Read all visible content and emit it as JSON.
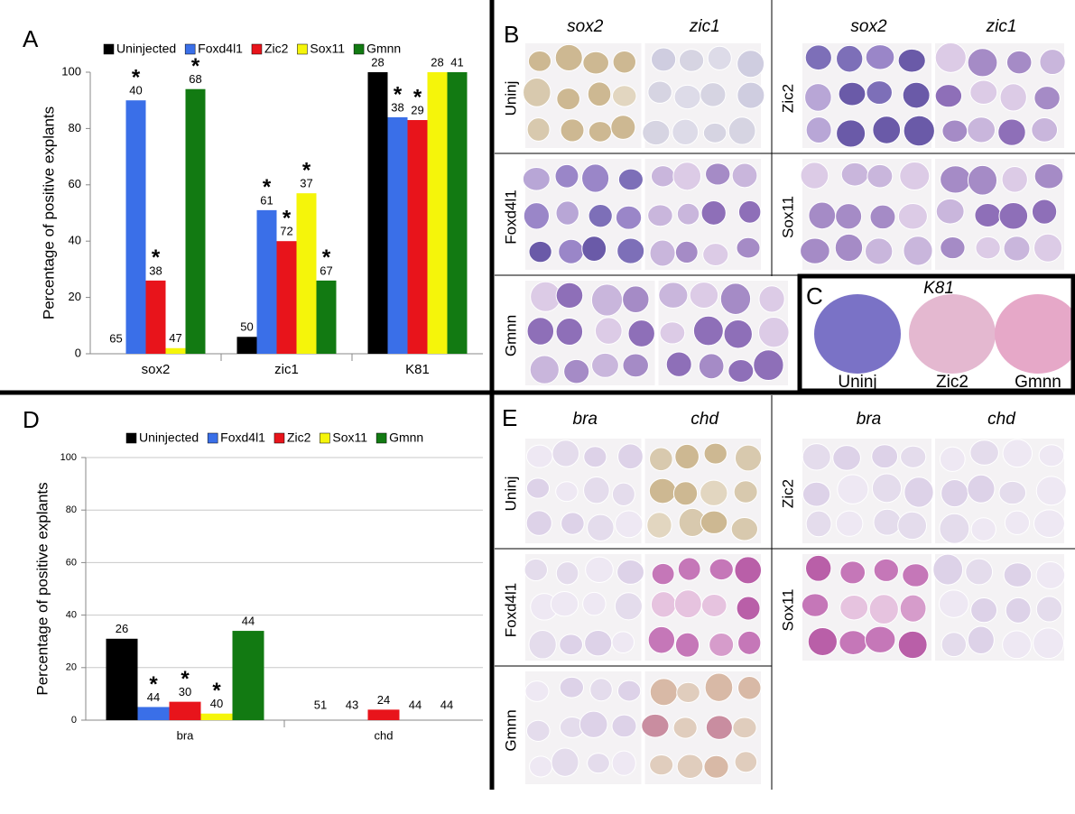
{
  "chart_data": [
    {
      "type": "bar",
      "panel": "A",
      "ylabel": "Percentage of positive explants",
      "categories": [
        "sox2",
        "zic1",
        "K81"
      ],
      "significance_marker": "*",
      "series": [
        {
          "name": "Uninjected",
          "color": "#000000",
          "values": [
            0,
            6,
            100
          ],
          "n_labels": [
            "65",
            "50",
            "28"
          ],
          "significant": [
            false,
            false,
            false
          ]
        },
        {
          "name": "Foxd4l1",
          "color": "#3a6fe8",
          "values": [
            90,
            51,
            84
          ],
          "n_labels": [
            "40",
            "61",
            "38"
          ],
          "significant": [
            true,
            true,
            true
          ]
        },
        {
          "name": "Zic2",
          "color": "#e8141b",
          "values": [
            26,
            40,
            83
          ],
          "n_labels": [
            "38",
            "72",
            "29"
          ],
          "significant": [
            true,
            true,
            true
          ]
        },
        {
          "name": "Sox11",
          "color": "#f5f50a",
          "values": [
            2,
            57,
            100
          ],
          "n_labels": [
            "47",
            "37",
            "28"
          ],
          "significant": [
            false,
            true,
            false
          ]
        },
        {
          "name": "Gmnn",
          "color": "#127a12",
          "values": [
            94,
            26,
            100
          ],
          "n_labels": [
            "68",
            "67",
            "41"
          ],
          "significant": [
            true,
            true,
            false
          ]
        }
      ],
      "ylim": [
        0,
        100
      ],
      "yticks": [
        0,
        20,
        40,
        60,
        80,
        100
      ],
      "grid": false
    },
    {
      "type": "bar",
      "panel": "D",
      "ylabel": "Percentage of positive explants",
      "categories": [
        "bra",
        "chd"
      ],
      "significance_marker": "*",
      "series": [
        {
          "name": "Uninjected",
          "color": "#000000",
          "values": [
            31,
            0
          ],
          "n_labels": [
            "26",
            "51"
          ],
          "significant": [
            false,
            false
          ]
        },
        {
          "name": "Foxd4l1",
          "color": "#3a6fe8",
          "values": [
            5,
            0
          ],
          "n_labels": [
            "44",
            "43"
          ],
          "significant": [
            true,
            false
          ]
        },
        {
          "name": "Zic2",
          "color": "#e8141b",
          "values": [
            7,
            4
          ],
          "n_labels": [
            "30",
            "24"
          ],
          "significant": [
            true,
            false
          ]
        },
        {
          "name": "Sox11",
          "color": "#f5f50a",
          "values": [
            2.5,
            0
          ],
          "n_labels": [
            "40",
            "44"
          ],
          "significant": [
            true,
            false
          ]
        },
        {
          "name": "Gmnn",
          "color": "#127a12",
          "values": [
            34,
            0
          ],
          "n_labels": [
            "44",
            "44"
          ],
          "significant": [
            false,
            false
          ]
        }
      ],
      "ylim": [
        0,
        100
      ],
      "yticks": [
        0,
        20,
        40,
        60,
        80,
        100
      ],
      "grid": true
    }
  ],
  "panels": [
    {
      "letter": "B",
      "blocks": [
        {
          "row_label": "Uninj",
          "columns": [
            "sox2",
            "zic1"
          ]
        },
        {
          "row_label": "Zic2",
          "columns": [
            "sox2",
            "zic1"
          ]
        },
        {
          "row_label": "Foxd4l1"
        },
        {
          "row_label": "Sox11"
        },
        {
          "row_label": "Gmnn"
        }
      ]
    },
    {
      "letter": "C",
      "title": "K81",
      "labels": [
        "Uninj",
        "Zic2",
        "Gmnn"
      ]
    },
    {
      "letter": "E",
      "blocks": [
        {
          "row_label": "Uninj",
          "columns": [
            "bra",
            "chd"
          ]
        },
        {
          "row_label": "Zic2",
          "columns": [
            "bra",
            "chd"
          ]
        },
        {
          "row_label": "Foxd4l1"
        },
        {
          "row_label": "Sox11"
        },
        {
          "row_label": "Gmnn"
        }
      ]
    }
  ]
}
